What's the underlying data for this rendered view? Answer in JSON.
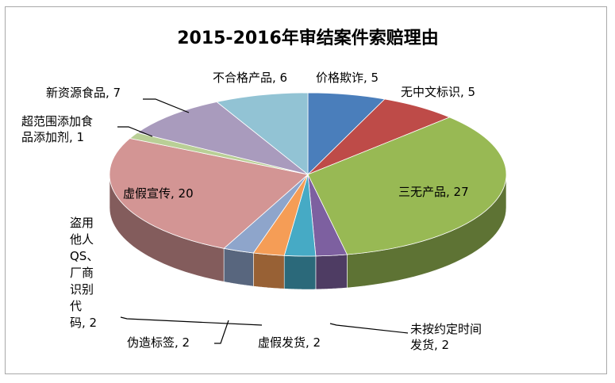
{
  "chart_data": {
    "type": "pie",
    "title": "2015-2016年审结案件索赔理由",
    "three_d": true,
    "slices": [
      {
        "label": "价格欺诈",
        "value": 5,
        "color": "#4a7ebb",
        "text": "价格欺诈, 5"
      },
      {
        "label": "无中文标识",
        "value": 5,
        "color": "#be4b48",
        "text": "无中文标识, 5"
      },
      {
        "label": "三无产品",
        "value": 27,
        "color": "#98b954",
        "text": "三无产品, 27"
      },
      {
        "label": "未按约定时间发货",
        "value": 2,
        "color": "#7d60a0",
        "text_lines": [
          "未按约定时间",
          "发货, 2"
        ]
      },
      {
        "label": "虚假发货",
        "value": 2,
        "color": "#46aac5",
        "text": "虚假发货, 2"
      },
      {
        "label": "伪造标签",
        "value": 2,
        "color": "#f59d56",
        "text": "伪造标签, 2"
      },
      {
        "label": "盗用他人QS、厂商识别代码",
        "value": 2,
        "color": "#8ea5cb",
        "text_lines": [
          "盗用",
          "他人",
          "QS、",
          "厂商",
          "识别",
          "代",
          "码, 2"
        ]
      },
      {
        "label": "虚假宣传",
        "value": 20,
        "color": "#d39594",
        "text": "虚假宣传, 20"
      },
      {
        "label": "超范围添加食品添加剂",
        "value": 1,
        "color": "#b9cf96",
        "text_lines": [
          "超范围添加食",
          "品添加剂, 1"
        ]
      },
      {
        "label": "新资源食品",
        "value": 7,
        "color": "#a99bbd",
        "text": "新资源食品, 7"
      },
      {
        "label": "不合格产品",
        "value": 6,
        "color": "#92c3d4",
        "text": "不合格产品, 6"
      }
    ]
  }
}
